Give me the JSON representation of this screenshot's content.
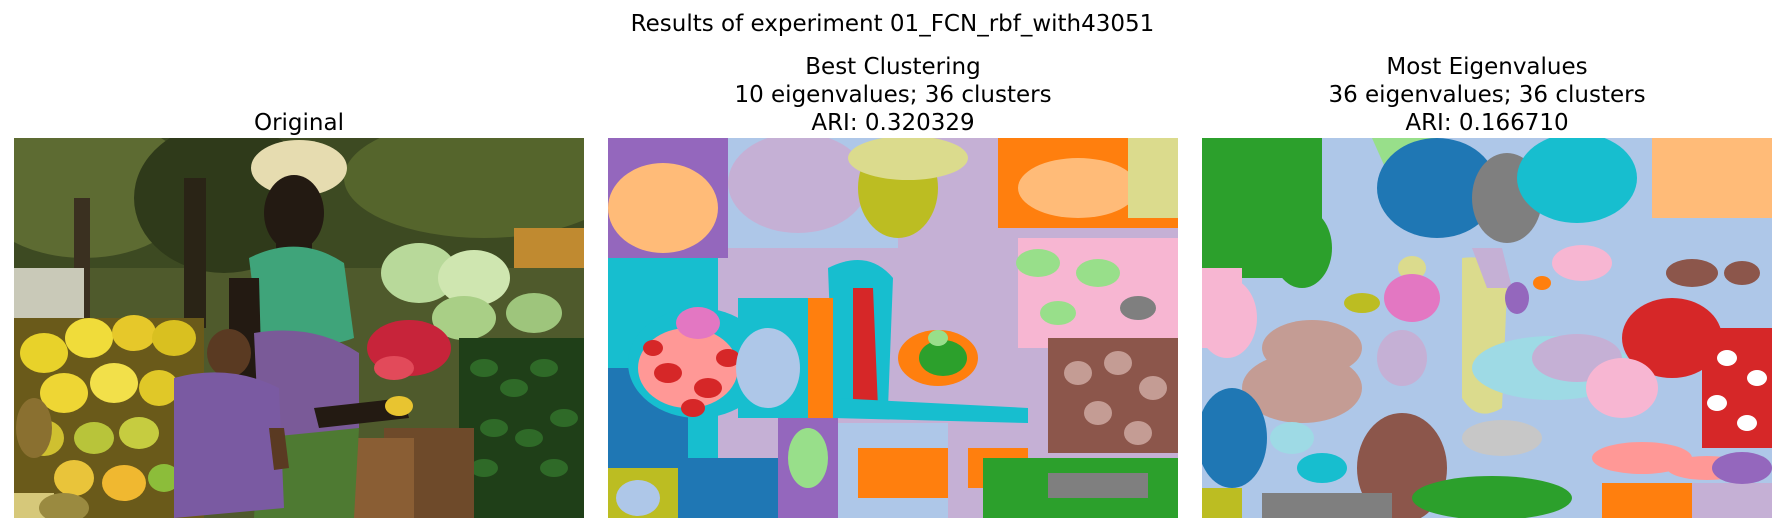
{
  "figure": {
    "suptitle": "Results of experiment 01_FCN_rbf_with43051"
  },
  "panels": [
    {
      "title_lines": [
        "Original"
      ]
    },
    {
      "title_lines": [
        "Best Clustering",
        "10 eigenvalues; 36 clusters",
        "ARI: 0.320329"
      ]
    },
    {
      "title_lines": [
        "Most Eigenvalues",
        "36 eigenvalues; 36 clusters",
        "ARI: 0.166710"
      ]
    }
  ],
  "colors": {
    "tab_blue": "#1f77b4",
    "tab_light_blue": "#aec7e8",
    "tab_orange": "#ff7f0e",
    "tab_light_orange": "#ffbb78",
    "tab_green": "#2ca02c",
    "tab_light_green": "#98df8a",
    "tab_red": "#d62728",
    "tab_pink": "#ff9896",
    "tab_purple": "#9467bd",
    "tab_lavender": "#c5b0d5",
    "tab_brown": "#8c564b",
    "tab_light_brown": "#c49c94",
    "tab_magenta": "#e377c2",
    "tab_light_pink": "#f7b6d2",
    "tab_gray": "#7f7f7f",
    "tab_light_gray": "#c7c7c7",
    "tab_olive": "#bcbd22",
    "tab_khaki": "#dbdb8d",
    "tab_cyan": "#17becf",
    "tab_light_cyan": "#9edae5"
  }
}
